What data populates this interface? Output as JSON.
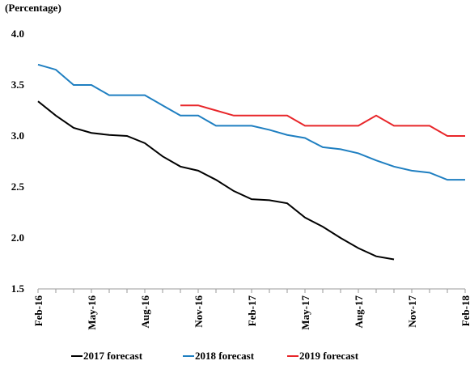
{
  "chart_data": {
    "type": "line",
    "y_label": "(Percentage)",
    "categories": [
      "Feb-16",
      null,
      null,
      "May-16",
      null,
      null,
      "Aug-16",
      null,
      null,
      "Nov-16",
      null,
      null,
      "Feb-17",
      null,
      null,
      "May-17",
      null,
      null,
      "Aug-17",
      null,
      null,
      "Nov-17",
      null,
      null,
      "Feb-18"
    ],
    "series": [
      {
        "name": "2017 forecast",
        "color": "#000000",
        "values": [
          3.34,
          3.2,
          3.08,
          3.03,
          3.01,
          3.0,
          2.93,
          2.8,
          2.7,
          2.66,
          2.57,
          2.46,
          2.38,
          2.37,
          2.34,
          2.2,
          2.11,
          2.0,
          1.9,
          1.82,
          1.79,
          null,
          null,
          null,
          null
        ]
      },
      {
        "name": "2018 forecast",
        "color": "#1f7fc1",
        "values": [
          3.7,
          3.65,
          3.5,
          3.5,
          3.4,
          3.4,
          3.4,
          3.3,
          3.2,
          3.2,
          3.1,
          3.1,
          3.1,
          3.06,
          3.01,
          2.98,
          2.89,
          2.87,
          2.83,
          2.76,
          2.7,
          2.66,
          2.64,
          2.57,
          2.57
        ]
      },
      {
        "name": "2019 forecast",
        "color": "#e8262a",
        "values": [
          null,
          null,
          null,
          null,
          null,
          null,
          null,
          null,
          3.3,
          3.3,
          3.25,
          3.2,
          3.2,
          3.2,
          3.2,
          3.1,
          3.1,
          3.1,
          3.1,
          3.2,
          3.1,
          3.1,
          3.1,
          3.0,
          3.0
        ]
      }
    ],
    "ylim": [
      1.5,
      4.0
    ],
    "yticks": [
      1.5,
      {
        "value": 2.0,
        "label": "2.0"
      },
      2.5,
      {
        "value": 3.0,
        "label": "3.0"
      },
      3.5,
      {
        "value": 4.0,
        "label": "4.0"
      }
    ],
    "grid": false
  }
}
